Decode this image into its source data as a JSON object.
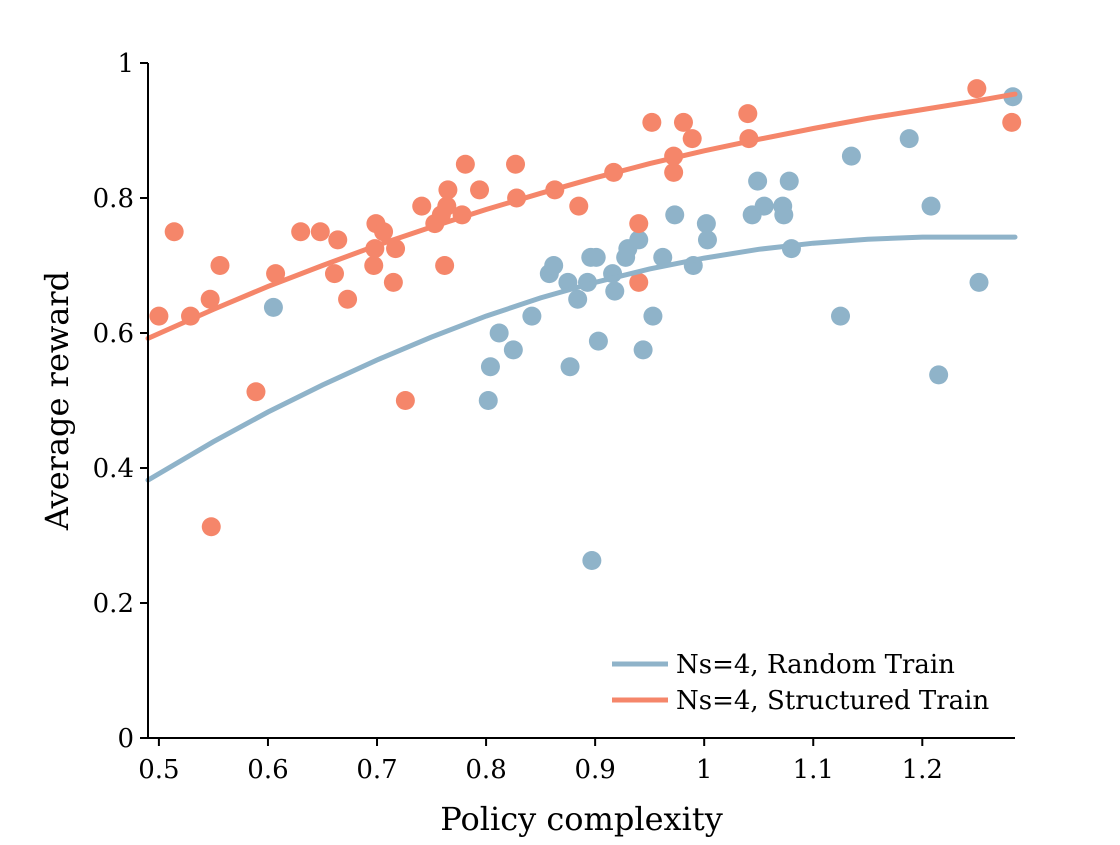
{
  "colors": {
    "random": "#8fb3c9",
    "structured": "#f5866a",
    "axis": "#000000"
  },
  "chart_data": {
    "type": "scatter",
    "title": "",
    "xlabel": "Policy complexity",
    "ylabel": "Average reward",
    "xlim": [
      0.49,
      1.285
    ],
    "ylim": [
      0,
      1
    ],
    "xticks": [
      0.5,
      0.6,
      0.7,
      0.8,
      0.9,
      1,
      1.1,
      1.2
    ],
    "xtick_labels": [
      "0.5",
      "0.6",
      "0.7",
      "0.8",
      "0.9",
      "1",
      "1.1",
      "1.2"
    ],
    "yticks": [
      0,
      0.2,
      0.4,
      0.6,
      0.8,
      1
    ],
    "ytick_labels": [
      "0",
      "0.2",
      "0.4",
      "0.6",
      "0.8",
      "1"
    ],
    "grid": false,
    "legend_position": "bottom-right",
    "series": [
      {
        "name": "Ns=4, Random Train",
        "color": "#8fb3c9",
        "points": [
          [
            0.605,
            0.638
          ],
          [
            0.802,
            0.5
          ],
          [
            0.804,
            0.55
          ],
          [
            0.812,
            0.6
          ],
          [
            0.825,
            0.575
          ],
          [
            0.842,
            0.625
          ],
          [
            0.858,
            0.688
          ],
          [
            0.862,
            0.7
          ],
          [
            0.875,
            0.675
          ],
          [
            0.877,
            0.55
          ],
          [
            0.884,
            0.65
          ],
          [
            0.893,
            0.675
          ],
          [
            0.896,
            0.712
          ],
          [
            0.897,
            0.263
          ],
          [
            0.901,
            0.712
          ],
          [
            0.903,
            0.588
          ],
          [
            0.916,
            0.688
          ],
          [
            0.918,
            0.662
          ],
          [
            0.928,
            0.712
          ],
          [
            0.93,
            0.725
          ],
          [
            0.94,
            0.738
          ],
          [
            0.944,
            0.575
          ],
          [
            0.953,
            0.625
          ],
          [
            0.962,
            0.712
          ],
          [
            0.973,
            0.775
          ],
          [
            0.99,
            0.7
          ],
          [
            1.002,
            0.762
          ],
          [
            1.003,
            0.738
          ],
          [
            1.044,
            0.775
          ],
          [
            1.049,
            0.825
          ],
          [
            1.055,
            0.788
          ],
          [
            1.072,
            0.788
          ],
          [
            1.073,
            0.775
          ],
          [
            1.078,
            0.825
          ],
          [
            1.08,
            0.725
          ],
          [
            1.125,
            0.625
          ],
          [
            1.135,
            0.862
          ],
          [
            1.188,
            0.888
          ],
          [
            1.208,
            0.788
          ],
          [
            1.215,
            0.538
          ],
          [
            1.252,
            0.675
          ],
          [
            1.283,
            0.95
          ]
        ],
        "fit_curve": [
          [
            0.49,
            0.382
          ],
          [
            0.55,
            0.439
          ],
          [
            0.6,
            0.483
          ],
          [
            0.65,
            0.523
          ],
          [
            0.7,
            0.56
          ],
          [
            0.75,
            0.594
          ],
          [
            0.8,
            0.625
          ],
          [
            0.85,
            0.652
          ],
          [
            0.9,
            0.675
          ],
          [
            0.95,
            0.695
          ],
          [
            1.0,
            0.711
          ],
          [
            1.05,
            0.724
          ],
          [
            1.1,
            0.733
          ],
          [
            1.15,
            0.739
          ],
          [
            1.2,
            0.742
          ],
          [
            1.25,
            0.742
          ],
          [
            1.285,
            0.742
          ]
        ]
      },
      {
        "name": "Ns=4, Structured Train",
        "color": "#f5866a",
        "points": [
          [
            0.5,
            0.625
          ],
          [
            0.514,
            0.75
          ],
          [
            0.529,
            0.625
          ],
          [
            0.547,
            0.65
          ],
          [
            0.548,
            0.313
          ],
          [
            0.556,
            0.7
          ],
          [
            0.589,
            0.513
          ],
          [
            0.607,
            0.688
          ],
          [
            0.63,
            0.75
          ],
          [
            0.648,
            0.75
          ],
          [
            0.661,
            0.688
          ],
          [
            0.664,
            0.738
          ],
          [
            0.673,
            0.65
          ],
          [
            0.697,
            0.7
          ],
          [
            0.698,
            0.725
          ],
          [
            0.699,
            0.762
          ],
          [
            0.706,
            0.75
          ],
          [
            0.715,
            0.675
          ],
          [
            0.717,
            0.725
          ],
          [
            0.726,
            0.5
          ],
          [
            0.741,
            0.788
          ],
          [
            0.753,
            0.762
          ],
          [
            0.759,
            0.775
          ],
          [
            0.762,
            0.7
          ],
          [
            0.764,
            0.788
          ],
          [
            0.765,
            0.812
          ],
          [
            0.778,
            0.775
          ],
          [
            0.781,
            0.85
          ],
          [
            0.794,
            0.812
          ],
          [
            0.827,
            0.85
          ],
          [
            0.828,
            0.8
          ],
          [
            0.863,
            0.812
          ],
          [
            0.885,
            0.788
          ],
          [
            0.917,
            0.838
          ],
          [
            0.94,
            0.762
          ],
          [
            0.94,
            0.675
          ],
          [
            0.952,
            0.912
          ],
          [
            0.972,
            0.862
          ],
          [
            0.972,
            0.838
          ],
          [
            0.981,
            0.912
          ],
          [
            0.989,
            0.888
          ],
          [
            1.04,
            0.925
          ],
          [
            1.041,
            0.888
          ],
          [
            1.25,
            0.962
          ],
          [
            1.282,
            0.912
          ]
        ],
        "fit_curve": [
          [
            0.49,
            0.592
          ],
          [
            0.55,
            0.635
          ],
          [
            0.6,
            0.669
          ],
          [
            0.65,
            0.7
          ],
          [
            0.7,
            0.73
          ],
          [
            0.75,
            0.757
          ],
          [
            0.8,
            0.783
          ],
          [
            0.85,
            0.807
          ],
          [
            0.9,
            0.83
          ],
          [
            0.95,
            0.851
          ],
          [
            1.0,
            0.87
          ],
          [
            1.05,
            0.887
          ],
          [
            1.1,
            0.903
          ],
          [
            1.15,
            0.918
          ],
          [
            1.2,
            0.931
          ],
          [
            1.25,
            0.944
          ],
          [
            1.285,
            0.954
          ]
        ]
      }
    ]
  }
}
